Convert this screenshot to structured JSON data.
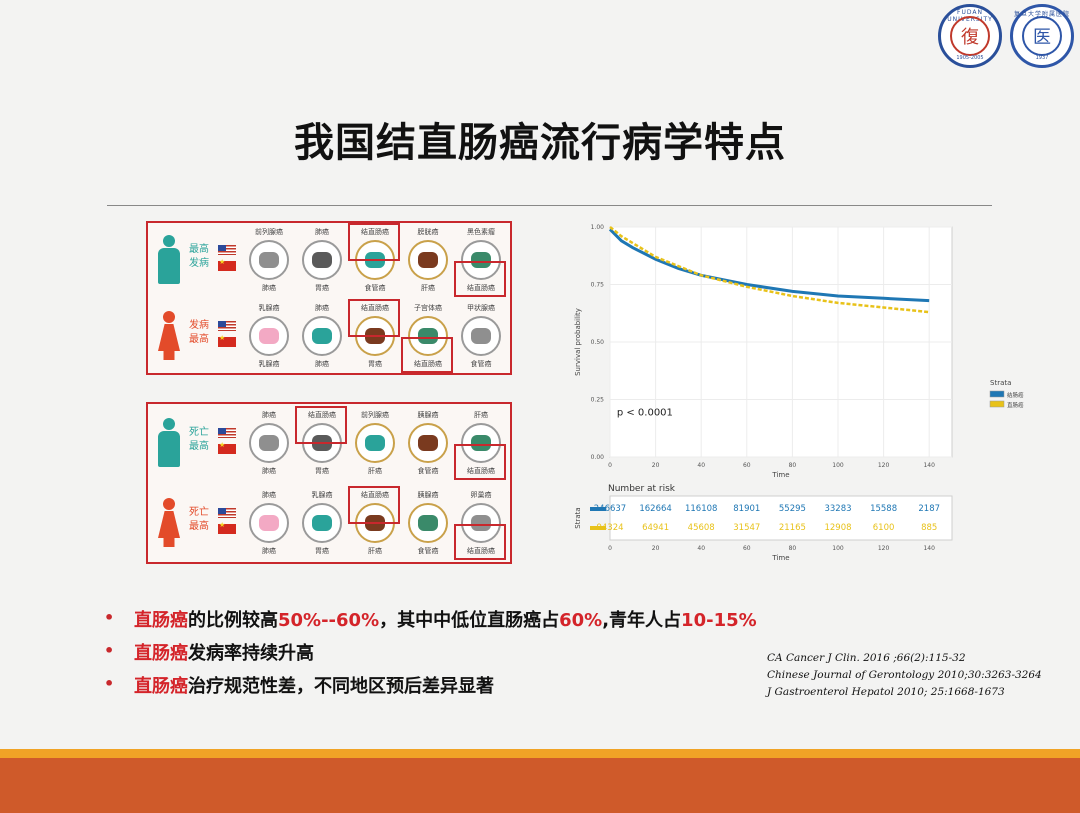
{
  "logos": {
    "left_ring": "FUDAN UNIVERSITY",
    "left_years": "1905-2005",
    "left_glyph": "復",
    "right_glyph": "医",
    "right_ring": "复旦大学附属医院",
    "right_year": "1937"
  },
  "title": "我国结直肠癌流行病学特点",
  "panel1": {
    "male": {
      "label": "最高\n发病",
      "top": [
        "前列腺癌",
        "肺癌",
        "结直肠癌",
        "膀胱癌",
        "黑色素瘤"
      ],
      "bottom": [
        "肺癌",
        "胃癌",
        "食管癌",
        "肝癌",
        "结直肠癌"
      ]
    },
    "female": {
      "label": "发病\n最高",
      "top": [
        "乳腺癌",
        "肺癌",
        "结直肠癌",
        "子宫体癌",
        "甲状腺癌"
      ],
      "bottom": [
        "乳腺癌",
        "肺癌",
        "胃癌",
        "结直肠癌",
        "食管癌"
      ]
    }
  },
  "panel2": {
    "male": {
      "label": "死亡\n最高",
      "top": [
        "肺癌",
        "结直肠癌",
        "前列腺癌",
        "胰腺癌",
        "肝癌"
      ],
      "bottom": [
        "肺癌",
        "胃癌",
        "肝癌",
        "食管癌",
        "结直肠癌"
      ]
    },
    "female": {
      "label": "死亡\n最高",
      "top": [
        "肺癌",
        "乳腺癌",
        "结直肠癌",
        "胰腺癌",
        "卵巢癌"
      ],
      "bottom": [
        "肺癌",
        "胃癌",
        "肝癌",
        "食管癌",
        "结直肠癌"
      ]
    }
  },
  "chart_data": {
    "type": "line",
    "title": "",
    "xlabel": "Time",
    "ylabel": "Survival probability",
    "xlim": [
      0,
      150
    ],
    "ylim": [
      0,
      1
    ],
    "x_ticks": [
      0,
      20,
      40,
      60,
      80,
      100,
      120,
      140
    ],
    "y_ticks": [
      "0.00",
      "0.25",
      "0.50",
      "0.75",
      "1.00"
    ],
    "annotation": "p < 0.0001",
    "legend_title": "Strata",
    "legend_position": "right",
    "series": [
      {
        "name": "结肠癌",
        "color": "#1f77b4",
        "x": [
          0,
          5,
          10,
          20,
          30,
          40,
          60,
          80,
          100,
          120,
          140
        ],
        "y": [
          0.99,
          0.94,
          0.91,
          0.86,
          0.82,
          0.79,
          0.75,
          0.72,
          0.7,
          0.69,
          0.68
        ]
      },
      {
        "name": "直肠癌",
        "color": "#e8c21a",
        "x": [
          0,
          5,
          10,
          20,
          30,
          40,
          60,
          80,
          100,
          120,
          140
        ],
        "y": [
          1.0,
          0.96,
          0.93,
          0.87,
          0.83,
          0.79,
          0.74,
          0.7,
          0.67,
          0.65,
          0.63
        ]
      }
    ],
    "risk_table": {
      "title": "Number at risk",
      "ylabel": "Strata",
      "xlabel": "Time",
      "rows": [
        {
          "color": "#1f77b4",
          "values": [
            "246637",
            "162664",
            "116108",
            "81901",
            "55295",
            "33283",
            "15588",
            "2187"
          ]
        },
        {
          "color": "#e8c21a",
          "values": [
            "94324",
            "64941",
            "45608",
            "31547",
            "21165",
            "12908",
            "6100",
            "885"
          ]
        }
      ]
    }
  },
  "bullets": [
    {
      "red1": "直肠癌",
      "t1": "的比例较高",
      "red2": "50%--60%",
      "t2": "，其中中低位直肠癌占",
      "red3": "60%",
      "t3": ",青年人占",
      "red4": "10-15%"
    },
    {
      "red1": "直肠癌",
      "t1": "发病率持续升高"
    },
    {
      "red1": "直肠癌",
      "t1": "治疗规范性差，不同地区预后差异显著"
    }
  ],
  "references": [
    "CA Cancer J Clin. 2016 ;66(2):115-32",
    "Chinese Journal of Gerontology 2010;30:3263-3264",
    "J Gastroenterol Hepatol 2010; 25:1668-1673"
  ]
}
